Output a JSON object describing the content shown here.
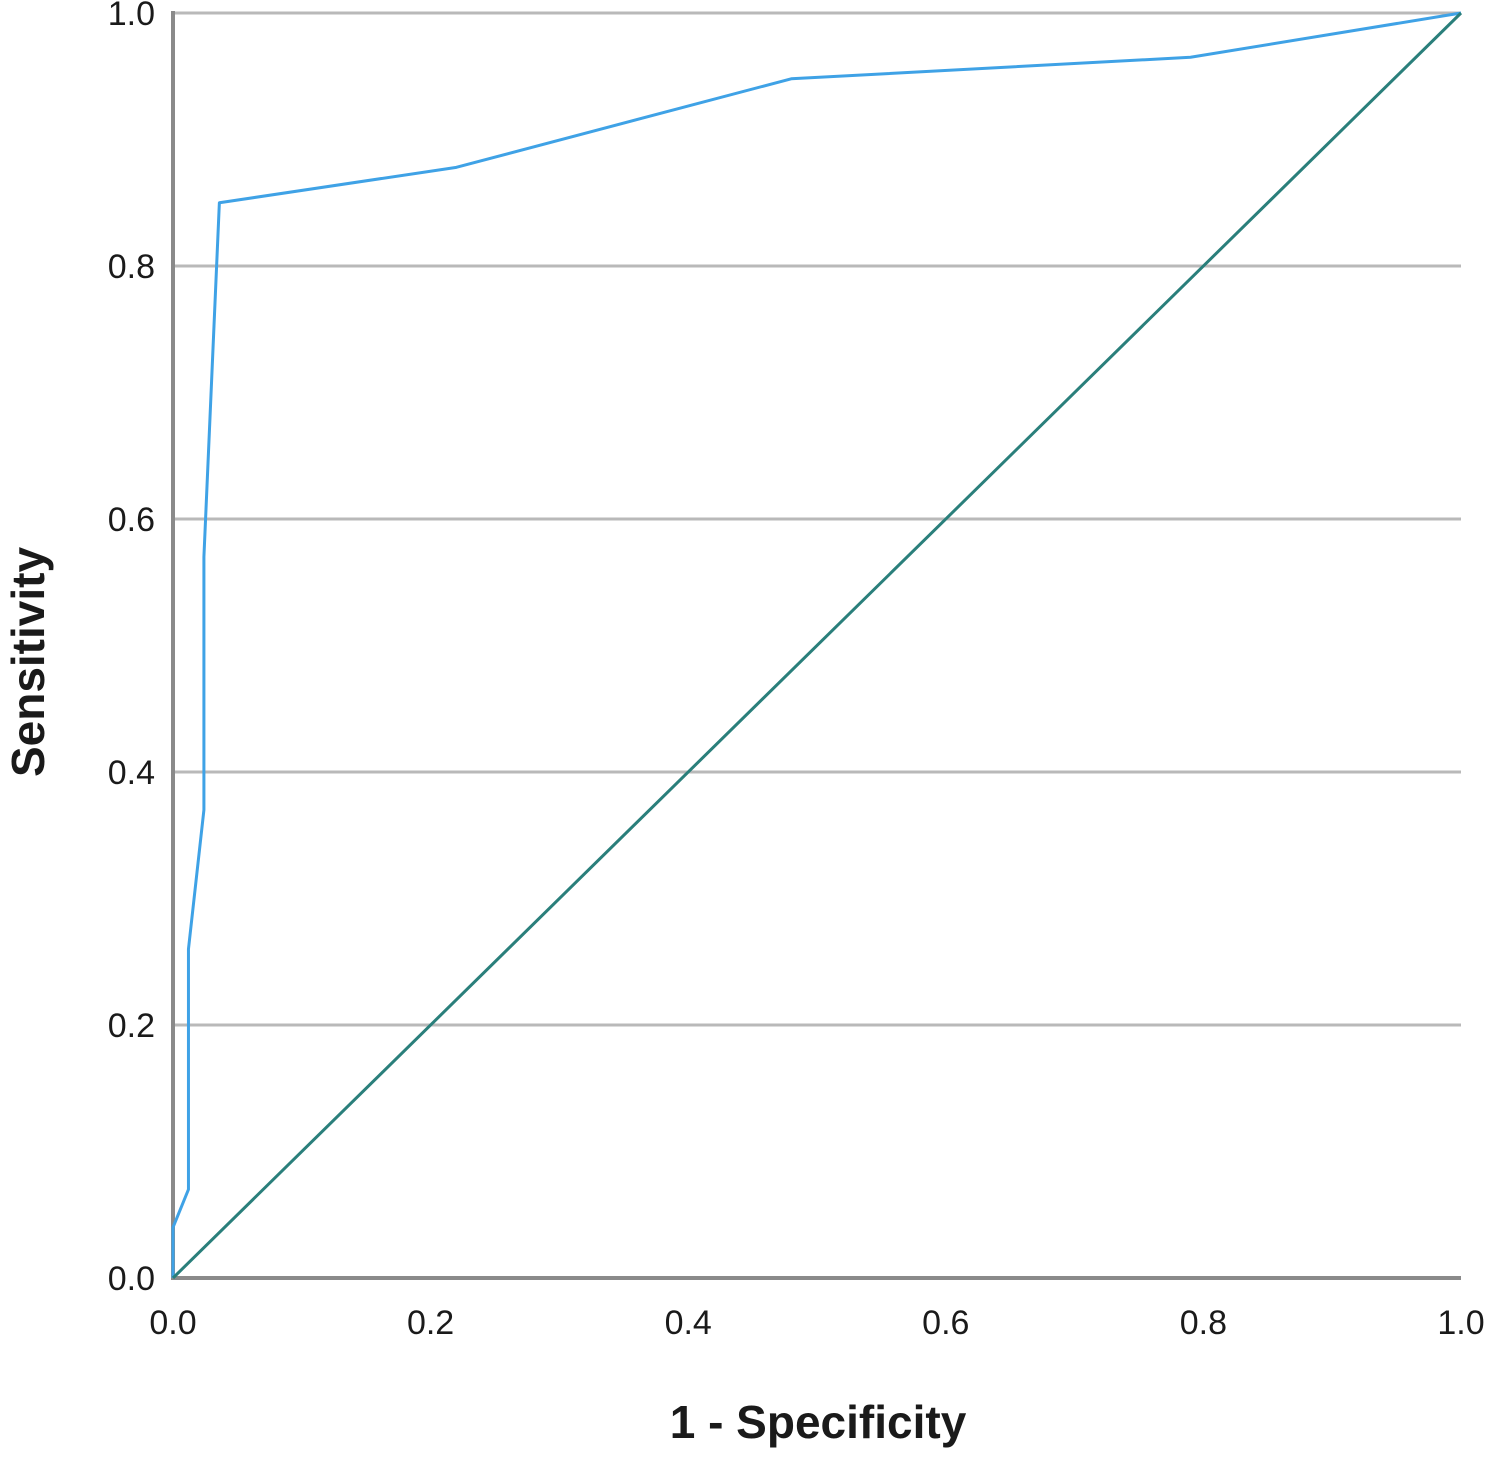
{
  "chart_data": {
    "type": "line",
    "title": "",
    "xlabel": "1 - Specificity",
    "ylabel": "Sensitivity",
    "xlim": [
      0,
      1
    ],
    "ylim": [
      0,
      1
    ],
    "x_ticks": [
      "0.0",
      "0.2",
      "0.4",
      "0.6",
      "0.8",
      "1.0"
    ],
    "y_ticks": [
      "0.0",
      "0.2",
      "0.4",
      "0.6",
      "0.8",
      "1.0"
    ],
    "grid": "horizontal",
    "legend": "none",
    "series": [
      {
        "color": "#3fa2e6",
        "points": [
          [
            0.0,
            0.0
          ],
          [
            0.0,
            0.04
          ],
          [
            0.012,
            0.07
          ],
          [
            0.012,
            0.26
          ],
          [
            0.024,
            0.37
          ],
          [
            0.024,
            0.57
          ],
          [
            0.036,
            0.85
          ],
          [
            0.22,
            0.878
          ],
          [
            0.48,
            0.948
          ],
          [
            0.79,
            0.965
          ],
          [
            1.0,
            1.0
          ]
        ]
      },
      {
        "color": "#2a7f7b",
        "points": [
          [
            0,
            0
          ],
          [
            1,
            1
          ]
        ]
      }
    ]
  }
}
